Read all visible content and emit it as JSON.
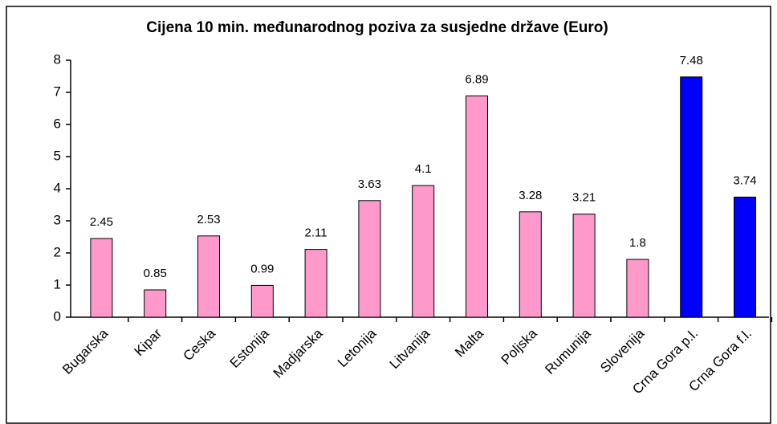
{
  "chart_data": {
    "type": "bar",
    "title": "Cijena 10 min. međunarodnog poziva za susjedne države (Euro)",
    "categories": [
      "Bugarska",
      "Kipar",
      "Ceska",
      "Estonija",
      "Madjarska",
      "Letonija",
      "Litvanija",
      "Malta",
      "Poljska",
      "Rumunija",
      "Slovenija",
      "Crna Gora p.l.",
      "Crna Gora f.l."
    ],
    "values": [
      2.45,
      0.85,
      2.53,
      0.99,
      2.11,
      3.63,
      4.1,
      6.89,
      3.28,
      3.21,
      1.8,
      7.48,
      3.74
    ],
    "colors": [
      "#ff99cc",
      "#ff99cc",
      "#ff99cc",
      "#ff99cc",
      "#ff99cc",
      "#ff99cc",
      "#ff99cc",
      "#ff99cc",
      "#ff99cc",
      "#ff99cc",
      "#ff99cc",
      "#0000ff",
      "#0000ff"
    ],
    "ylim": [
      0,
      8
    ],
    "yticks": [
      0,
      1,
      2,
      3,
      4,
      5,
      6,
      7,
      8
    ],
    "grid": false
  }
}
